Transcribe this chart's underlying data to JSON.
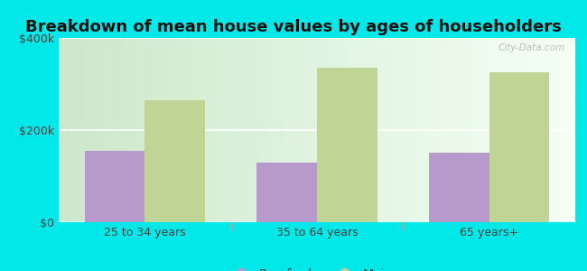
{
  "title": "Breakdown of mean house values by ages of householders",
  "categories": [
    "25 to 34 years",
    "35 to 64 years",
    "65 years+"
  ],
  "rumford_values": [
    155000,
    130000,
    150000
  ],
  "maine_values": [
    265000,
    335000,
    325000
  ],
  "rumford_color": "#b899cc",
  "maine_color": "#c0d496",
  "background_color": "#00e8e8",
  "ylim": [
    0,
    400000
  ],
  "yticks": [
    0,
    200000,
    400000
  ],
  "ytick_labels": [
    "$0",
    "$200k",
    "$400k"
  ],
  "bar_width": 0.35,
  "title_fontsize": 13,
  "tick_fontsize": 9,
  "legend_fontsize": 10,
  "watermark_text": "City-Data.com",
  "grad_color_left": "#cce8cc",
  "grad_color_right": "#f5fff5"
}
